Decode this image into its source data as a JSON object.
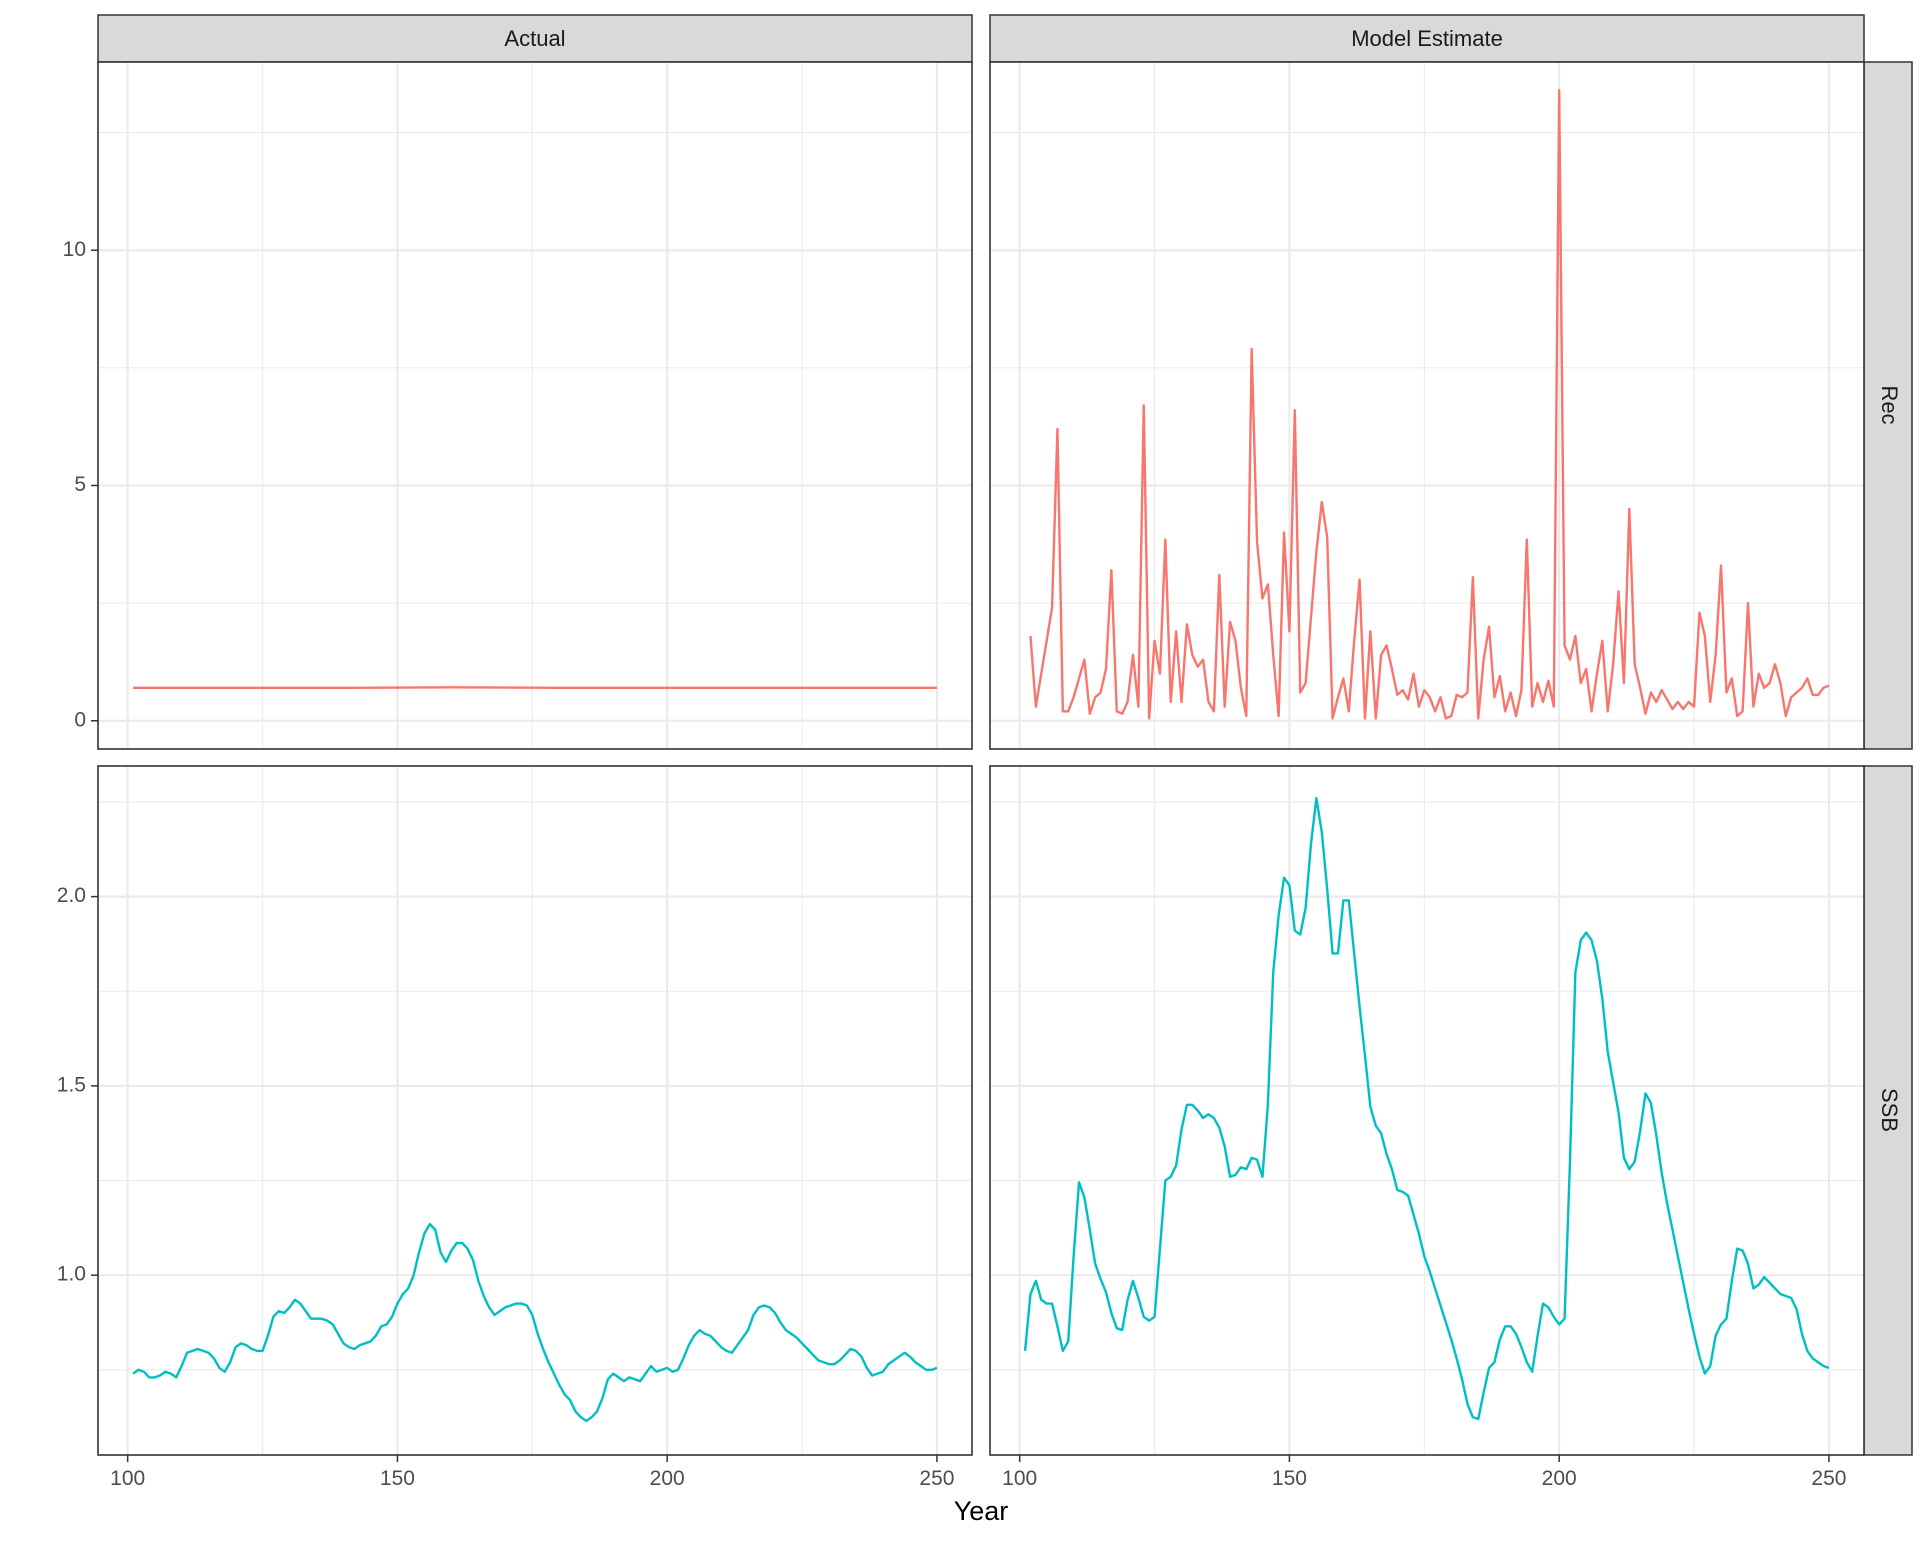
{
  "figure": {
    "xlabel": "Year"
  },
  "colors": {
    "rec": "#F8766D",
    "ssb": "#00BFC4",
    "strip": "#D9D9D9",
    "grid": "#EBEBEB",
    "border": "#333333"
  },
  "columns": [
    "Actual",
    "Model Estimate"
  ],
  "rows": [
    "Rec",
    "SSB"
  ],
  "chart_data": [
    {
      "type": "line",
      "facet_col": "Actual",
      "facet_row": "Rec",
      "series": [
        {
          "name": "Rec",
          "x": [
            101,
            120,
            140,
            160,
            180,
            200,
            220,
            250
          ],
          "values": [
            0.7,
            0.7,
            0.7,
            0.71,
            0.7,
            0.7,
            0.7,
            0.7
          ]
        }
      ]
    },
    {
      "type": "line",
      "facet_col": "Model Estimate",
      "facet_row": "Rec",
      "series": [
        {
          "name": "Rec",
          "x": [
            102,
            103,
            104,
            105,
            106,
            107,
            108,
            109,
            110,
            111,
            112,
            113,
            114,
            115,
            116,
            117,
            118,
            119,
            120,
            121,
            122,
            123,
            124,
            125,
            126,
            127,
            128,
            129,
            130,
            131,
            132,
            133,
            134,
            135,
            136,
            137,
            138,
            139,
            140,
            141,
            142,
            143,
            144,
            145,
            146,
            147,
            148,
            149,
            150,
            151,
            152,
            153,
            154,
            155,
            156,
            157,
            158,
            159,
            160,
            161,
            162,
            163,
            164,
            165,
            166,
            167,
            168,
            169,
            170,
            171,
            172,
            173,
            174,
            175,
            176,
            177,
            178,
            179,
            180,
            181,
            182,
            183,
            184,
            185,
            186,
            187,
            188,
            189,
            190,
            191,
            192,
            193,
            194,
            195,
            196,
            197,
            198,
            199,
            200,
            201,
            202,
            203,
            204,
            205,
            206,
            207,
            208,
            209,
            210,
            211,
            212,
            213,
            214,
            215,
            216,
            217,
            218,
            219,
            220,
            221,
            222,
            223,
            224,
            225,
            226,
            227,
            228,
            229,
            230,
            231,
            232,
            233,
            234,
            235,
            236,
            237,
            238,
            239,
            240,
            241,
            242,
            243,
            244,
            245,
            246,
            247,
            248,
            249,
            250
          ],
          "values": [
            1.8,
            0.3,
            1.0,
            1.7,
            2.4,
            6.2,
            0.2,
            0.2,
            0.5,
            0.9,
            1.3,
            0.15,
            0.5,
            0.6,
            1.1,
            3.2,
            0.2,
            0.15,
            0.4,
            1.4,
            0.3,
            6.7,
            0.05,
            1.7,
            1.0,
            3.85,
            0.4,
            1.9,
            0.4,
            2.05,
            1.4,
            1.15,
            1.3,
            0.4,
            0.2,
            3.1,
            0.3,
            2.1,
            1.7,
            0.7,
            0.1,
            7.9,
            3.8,
            2.6,
            2.9,
            1.4,
            0.1,
            4.0,
            1.9,
            6.6,
            0.6,
            0.8,
            2.2,
            3.6,
            4.65,
            3.9,
            0.05,
            0.5,
            0.9,
            0.2,
            1.7,
            3.0,
            0.05,
            1.9,
            0.05,
            1.4,
            1.6,
            1.1,
            0.55,
            0.65,
            0.45,
            1.0,
            0.3,
            0.65,
            0.5,
            0.2,
            0.5,
            0.05,
            0.1,
            0.55,
            0.5,
            0.6,
            3.05,
            0.05,
            1.3,
            2.0,
            0.5,
            0.95,
            0.2,
            0.6,
            0.1,
            0.65,
            3.85,
            0.3,
            0.8,
            0.4,
            0.85,
            0.3,
            13.4,
            1.6,
            1.3,
            1.8,
            0.8,
            1.1,
            0.2,
            1.0,
            1.7,
            0.2,
            1.2,
            2.75,
            0.8,
            4.5,
            1.2,
            0.7,
            0.15,
            0.6,
            0.4,
            0.65,
            0.45,
            0.25,
            0.4,
            0.25,
            0.4,
            0.3,
            2.3,
            1.8,
            0.4,
            1.4,
            3.3,
            0.6,
            0.9,
            0.1,
            0.2,
            2.5,
            0.3,
            1.0,
            0.7,
            0.8,
            1.2,
            0.8,
            0.1,
            0.5,
            0.6,
            0.7,
            0.9,
            0.55,
            0.55,
            0.7,
            0.75
          ]
        }
      ]
    },
    {
      "type": "line",
      "facet_col": "Actual",
      "facet_row": "SSB",
      "series": [
        {
          "name": "SSB",
          "x": [
            101,
            102,
            103,
            104,
            105,
            106,
            107,
            108,
            109,
            110,
            111,
            112,
            113,
            114,
            115,
            116,
            117,
            118,
            119,
            120,
            121,
            122,
            123,
            124,
            125,
            126,
            127,
            128,
            129,
            130,
            131,
            132,
            133,
            134,
            135,
            136,
            137,
            138,
            139,
            140,
            141,
            142,
            143,
            144,
            145,
            146,
            147,
            148,
            149,
            150,
            151,
            152,
            153,
            154,
            155,
            156,
            157,
            158,
            159,
            160,
            161,
            162,
            163,
            164,
            165,
            166,
            167,
            168,
            169,
            170,
            171,
            172,
            173,
            174,
            175,
            176,
            177,
            178,
            179,
            180,
            181,
            182,
            183,
            184,
            185,
            186,
            187,
            188,
            189,
            190,
            191,
            192,
            193,
            194,
            195,
            196,
            197,
            198,
            199,
            200,
            201,
            202,
            203,
            204,
            205,
            206,
            207,
            208,
            209,
            210,
            211,
            212,
            213,
            214,
            215,
            216,
            217,
            218,
            219,
            220,
            221,
            222,
            223,
            224,
            225,
            226,
            227,
            228,
            229,
            230,
            231,
            232,
            233,
            234,
            235,
            236,
            237,
            238,
            239,
            240,
            241,
            242,
            243,
            244,
            245,
            246,
            247,
            248,
            249,
            250
          ],
          "values": [
            0.74,
            0.75,
            0.745,
            0.73,
            0.73,
            0.735,
            0.745,
            0.74,
            0.73,
            0.76,
            0.795,
            0.8,
            0.805,
            0.8,
            0.795,
            0.78,
            0.755,
            0.745,
            0.77,
            0.81,
            0.82,
            0.815,
            0.805,
            0.8,
            0.8,
            0.84,
            0.89,
            0.905,
            0.9,
            0.915,
            0.935,
            0.925,
            0.905,
            0.885,
            0.885,
            0.885,
            0.88,
            0.87,
            0.845,
            0.82,
            0.81,
            0.805,
            0.815,
            0.82,
            0.825,
            0.84,
            0.865,
            0.87,
            0.89,
            0.925,
            0.95,
            0.965,
            1.0,
            1.06,
            1.11,
            1.135,
            1.12,
            1.06,
            1.035,
            1.065,
            1.085,
            1.085,
            1.07,
            1.04,
            0.985,
            0.945,
            0.915,
            0.895,
            0.905,
            0.915,
            0.92,
            0.925,
            0.925,
            0.92,
            0.895,
            0.845,
            0.805,
            0.77,
            0.74,
            0.71,
            0.685,
            0.67,
            0.64,
            0.625,
            0.615,
            0.625,
            0.64,
            0.675,
            0.725,
            0.74,
            0.73,
            0.72,
            0.73,
            0.725,
            0.72,
            0.74,
            0.76,
            0.745,
            0.75,
            0.755,
            0.745,
            0.75,
            0.78,
            0.815,
            0.84,
            0.855,
            0.845,
            0.84,
            0.825,
            0.81,
            0.8,
            0.795,
            0.815,
            0.835,
            0.855,
            0.895,
            0.915,
            0.92,
            0.915,
            0.9,
            0.875,
            0.855,
            0.845,
            0.835,
            0.82,
            0.805,
            0.79,
            0.775,
            0.77,
            0.765,
            0.765,
            0.775,
            0.79,
            0.805,
            0.8,
            0.785,
            0.755,
            0.735,
            0.74,
            0.745,
            0.765,
            0.775,
            0.785,
            0.795,
            0.785,
            0.77,
            0.76,
            0.75,
            0.75,
            0.755
          ]
        }
      ]
    },
    {
      "type": "line",
      "facet_col": "Model Estimate",
      "facet_row": "SSB",
      "series": [
        {
          "name": "SSB",
          "x": [
            101,
            102,
            103,
            104,
            105,
            106,
            107,
            108,
            109,
            110,
            111,
            112,
            113,
            114,
            115,
            116,
            117,
            118,
            119,
            120,
            121,
            122,
            123,
            124,
            125,
            126,
            127,
            128,
            129,
            130,
            131,
            132,
            133,
            134,
            135,
            136,
            137,
            138,
            139,
            140,
            141,
            142,
            143,
            144,
            145,
            146,
            147,
            148,
            149,
            150,
            151,
            152,
            153,
            154,
            155,
            156,
            157,
            158,
            159,
            160,
            161,
            162,
            163,
            164,
            165,
            166,
            167,
            168,
            169,
            170,
            171,
            172,
            173,
            174,
            175,
            176,
            177,
            178,
            179,
            180,
            181,
            182,
            183,
            184,
            185,
            186,
            187,
            188,
            189,
            190,
            191,
            192,
            193,
            194,
            195,
            196,
            197,
            198,
            199,
            200,
            201,
            202,
            203,
            204,
            205,
            206,
            207,
            208,
            209,
            210,
            211,
            212,
            213,
            214,
            215,
            216,
            217,
            218,
            219,
            220,
            221,
            222,
            223,
            224,
            225,
            226,
            227,
            228,
            229,
            230,
            231,
            232,
            233,
            234,
            235,
            236,
            237,
            238,
            239,
            240,
            241,
            242,
            243,
            244,
            245,
            246,
            247,
            248,
            249,
            250
          ],
          "values": [
            0.8,
            0.95,
            0.985,
            0.935,
            0.925,
            0.925,
            0.865,
            0.8,
            0.825,
            1.05,
            1.245,
            1.205,
            1.12,
            1.03,
            0.99,
            0.955,
            0.9,
            0.86,
            0.855,
            0.935,
            0.985,
            0.94,
            0.89,
            0.88,
            0.89,
            1.07,
            1.25,
            1.26,
            1.29,
            1.385,
            1.45,
            1.45,
            1.435,
            1.415,
            1.425,
            1.415,
            1.39,
            1.34,
            1.26,
            1.265,
            1.285,
            1.28,
            1.31,
            1.305,
            1.26,
            1.45,
            1.8,
            1.95,
            2.05,
            2.03,
            1.91,
            1.9,
            1.97,
            2.14,
            2.26,
            2.17,
            2.02,
            1.85,
            1.85,
            1.99,
            1.99,
            1.85,
            1.71,
            1.58,
            1.445,
            1.395,
            1.375,
            1.32,
            1.28,
            1.225,
            1.22,
            1.21,
            1.16,
            1.11,
            1.05,
            1.01,
            0.965,
            0.92,
            0.875,
            0.83,
            0.78,
            0.725,
            0.66,
            0.625,
            0.62,
            0.69,
            0.755,
            0.77,
            0.83,
            0.865,
            0.865,
            0.845,
            0.81,
            0.77,
            0.745,
            0.84,
            0.925,
            0.915,
            0.89,
            0.87,
            0.885,
            1.3,
            1.8,
            1.885,
            1.905,
            1.885,
            1.83,
            1.73,
            1.59,
            1.51,
            1.43,
            1.31,
            1.28,
            1.3,
            1.38,
            1.48,
            1.455,
            1.37,
            1.27,
            1.19,
            1.12,
            1.05,
            0.98,
            0.91,
            0.845,
            0.785,
            0.74,
            0.76,
            0.84,
            0.87,
            0.885,
            0.985,
            1.07,
            1.065,
            1.03,
            0.965,
            0.975,
            0.995,
            0.98,
            0.965,
            0.95,
            0.945,
            0.94,
            0.91,
            0.845,
            0.8,
            0.78,
            0.77,
            0.76,
            0.755
          ]
        }
      ]
    }
  ],
  "y_axes": {
    "Rec": {
      "lim": [
        -0.6,
        14.0
      ],
      "ticks": [
        "0",
        "5",
        "10"
      ],
      "tick_values": [
        0,
        5,
        10
      ]
    },
    "SSB": {
      "lim": [
        0.525,
        2.345
      ],
      "ticks": [
        "1.0",
        "1.5",
        "2.0"
      ],
      "tick_values": [
        1.0,
        1.5,
        2.0
      ]
    }
  },
  "x_axis": {
    "lim": [
      94.5,
      256.5
    ],
    "ticks": [
      "100",
      "150",
      "200",
      "250"
    ],
    "tick_values": [
      100,
      150,
      200,
      250
    ]
  }
}
